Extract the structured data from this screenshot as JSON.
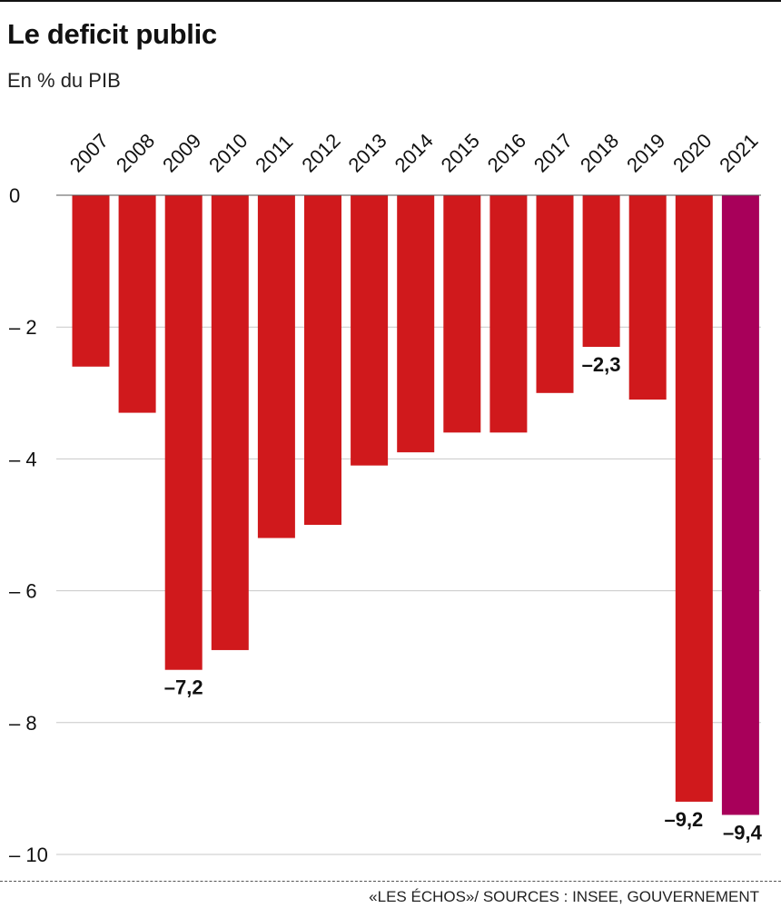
{
  "title": "Le deficit public",
  "subtitle": "En % du PIB",
  "source": "«LES ÉCHOS»/ SOURCES : INSEE, GOUVERNEMENT",
  "colors": {
    "bar": "#d0191c",
    "highlight": "#a8005a",
    "grid": "#c8c8c8",
    "text": "#111111"
  },
  "chart_data": {
    "type": "bar",
    "categories": [
      "2007",
      "2008",
      "2009",
      "2010",
      "2011",
      "2012",
      "2013",
      "2014",
      "2015",
      "2016",
      "2017",
      "2018",
      "2019",
      "2020",
      "2021"
    ],
    "values": [
      -2.6,
      -3.3,
      -7.2,
      -6.9,
      -5.2,
      -5.0,
      -4.1,
      -3.9,
      -3.6,
      -3.6,
      -3.0,
      -2.3,
      -3.1,
      -9.2,
      -9.4
    ],
    "highlight_index": 14,
    "data_labels": [
      {
        "category": "2009",
        "text": "–7,2"
      },
      {
        "category": "2018",
        "text": "–2,3"
      },
      {
        "category": "2020",
        "text": "–9,2"
      },
      {
        "category": "2021",
        "text": "–9,4"
      }
    ],
    "yticks": [
      0,
      -2,
      -4,
      -6,
      -8,
      -10
    ],
    "ytick_labels": [
      "0",
      "– 2",
      "– 4",
      "– 6",
      "– 8",
      "– 10"
    ],
    "ylim": [
      -10,
      0
    ],
    "grid": true,
    "xlabel": "",
    "ylabel": ""
  }
}
